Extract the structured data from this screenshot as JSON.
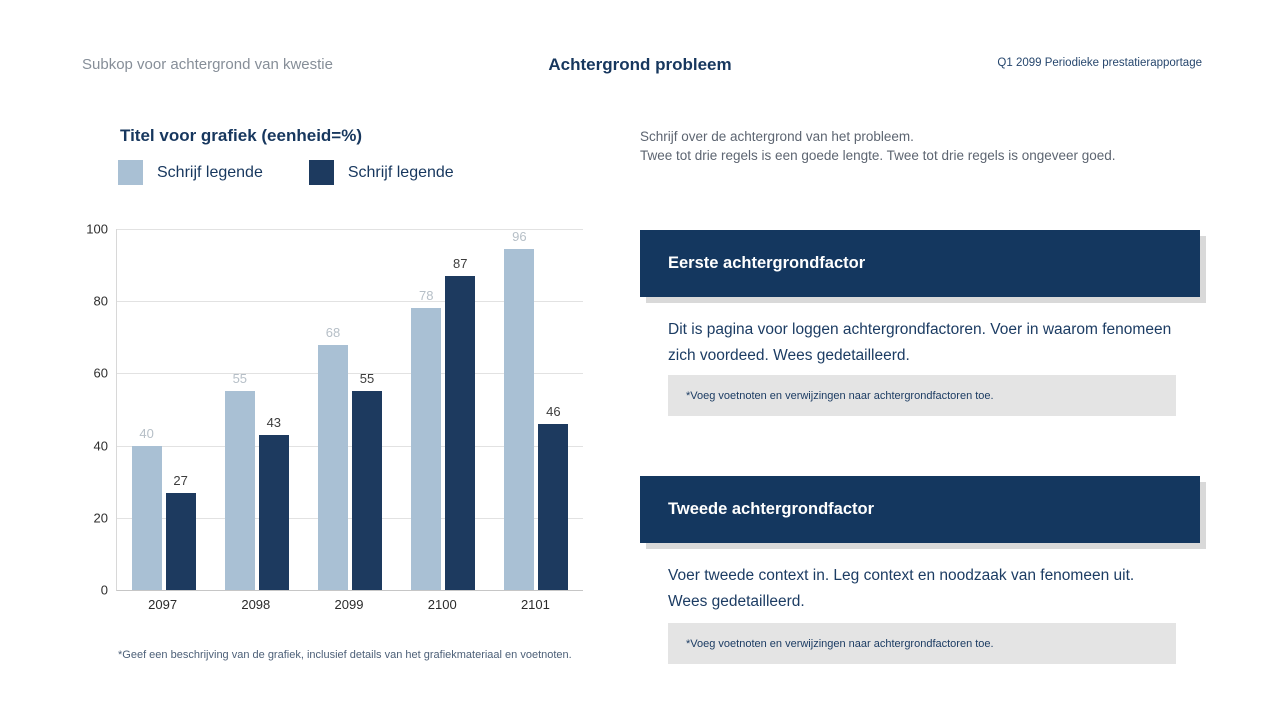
{
  "header": {
    "subtitle": "Subkop voor achtergrond van kwestie",
    "title": "Achtergrond probleem",
    "report_label": "Q1 2099 Periodieke prestatierapportage"
  },
  "chart": {
    "title": "Titel voor grafiek (eenheid=%)",
    "footnote": "*Geef een beschrijving van de grafiek, inclusief details van het grafiekmateriaal en voetnoten."
  },
  "chart_data": {
    "type": "bar",
    "title": "Titel voor grafiek (eenheid=%)",
    "categories": [
      "2097",
      "2098",
      "2099",
      "2100",
      "2101"
    ],
    "series": [
      {
        "name": "Schrijf legende",
        "color": "#a9c0d4",
        "label_color": "#b6bfc7",
        "values": [
          40,
          55,
          68,
          78,
          96
        ]
      },
      {
        "name": "Schrijf legende",
        "color": "#1d3a5f",
        "label_color": "#3d3d3d",
        "values": [
          27,
          43,
          55,
          87,
          46
        ]
      }
    ],
    "xlabel": "",
    "ylabel": "",
    "ylim": [
      0,
      100
    ],
    "yticks": [
      0,
      20,
      40,
      60,
      80,
      100
    ],
    "grid": true,
    "legend_position": "top-left"
  },
  "right": {
    "intro_line1": "Schrijf over de achtergrond van het probleem.",
    "intro_line2": "Twee tot drie regels is een goede lengte. Twee tot drie regels is ongeveer goed.",
    "sections": [
      {
        "heading": "Eerste achtergrondfactor",
        "body": "Dit is pagina voor loggen achtergrondfactoren. Voer in waarom fenomeen zich voordeed. Wees gedetailleerd.",
        "note": "*Voeg voetnoten en verwijzingen naar achtergrondfactoren toe."
      },
      {
        "heading": "Tweede achtergrondfactor",
        "body": "Voer tweede context in. Leg context en noodzaak van fenomeen uit. Wees gedetailleerd.",
        "note": "*Voeg voetnoten en verwijzingen naar achtergrondfactoren toe."
      }
    ]
  },
  "colors": {
    "accent_navy": "#17375e",
    "light_bar": "#a9c0d4",
    "dark_bar": "#1d3a5f",
    "note_bg": "#e4e4e4",
    "muted_text": "#868e98"
  }
}
